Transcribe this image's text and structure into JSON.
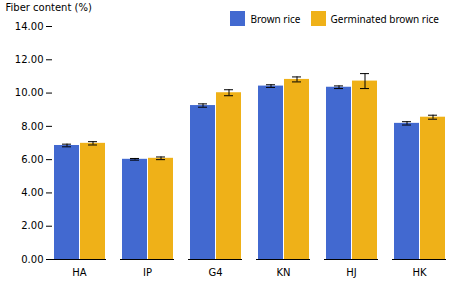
{
  "chart_data": {
    "type": "bar",
    "categories": [
      "HA",
      "IP",
      "G4",
      "KN",
      "HJ",
      "HK"
    ],
    "series": [
      {
        "name": "Brown rice",
        "values": [
          6.85,
          6.02,
          9.25,
          10.42,
          10.35,
          8.18
        ],
        "errors": [
          0.08,
          0.05,
          0.1,
          0.08,
          0.08,
          0.1
        ]
      },
      {
        "name": "Germinated brown rice",
        "values": [
          6.98,
          6.08,
          10.02,
          10.82,
          10.72,
          8.55
        ],
        "errors": [
          0.1,
          0.08,
          0.18,
          0.15,
          0.45,
          0.12
        ]
      }
    ],
    "ylabel": "Fiber content (%)",
    "ylim": [
      0,
      14.0
    ],
    "yticks": [
      {
        "value": 0,
        "label": "0.00"
      },
      {
        "value": 2,
        "label": "2.00"
      },
      {
        "value": 4,
        "label": "4.00"
      },
      {
        "value": 6,
        "label": "6.00"
      },
      {
        "value": 8,
        "label": "8.00"
      },
      {
        "value": 10,
        "label": "10.00"
      },
      {
        "value": 12,
        "label": "12.00"
      },
      {
        "value": 14,
        "label": "14.00"
      }
    ],
    "legend": "upper right"
  }
}
